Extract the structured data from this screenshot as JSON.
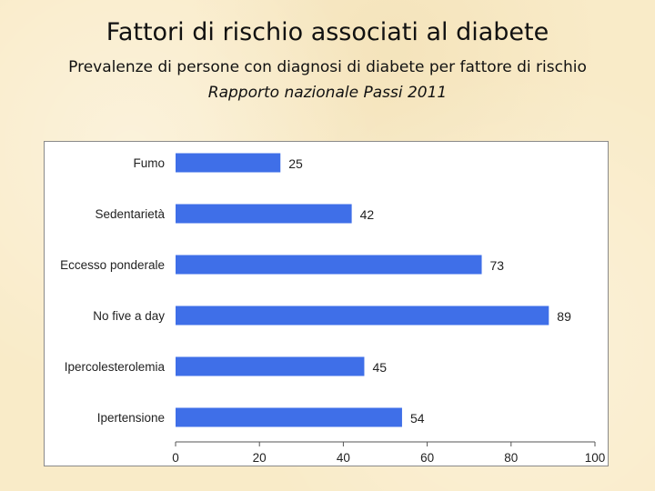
{
  "header": {
    "title": "Fattori di rischio associati al diabete",
    "subtitle": "Prevalenze di persone con diagnosi di diabete per fattore di rischio",
    "source": "Rapporto nazionale Passi 2011"
  },
  "chart_data": {
    "type": "bar",
    "orientation": "horizontal",
    "categories": [
      "Fumo",
      "Sedentarietà",
      "Eccesso ponderale",
      "No five a day",
      "Ipercolesterolemia",
      "Ipertensione"
    ],
    "values": [
      25,
      42,
      73,
      89,
      45,
      54
    ],
    "xlim": [
      0,
      100
    ],
    "xticks": [
      0,
      20,
      40,
      60,
      80,
      100
    ],
    "grid": false,
    "legend": "none",
    "bar_color": "#3f6fe8",
    "data_labels": true
  }
}
